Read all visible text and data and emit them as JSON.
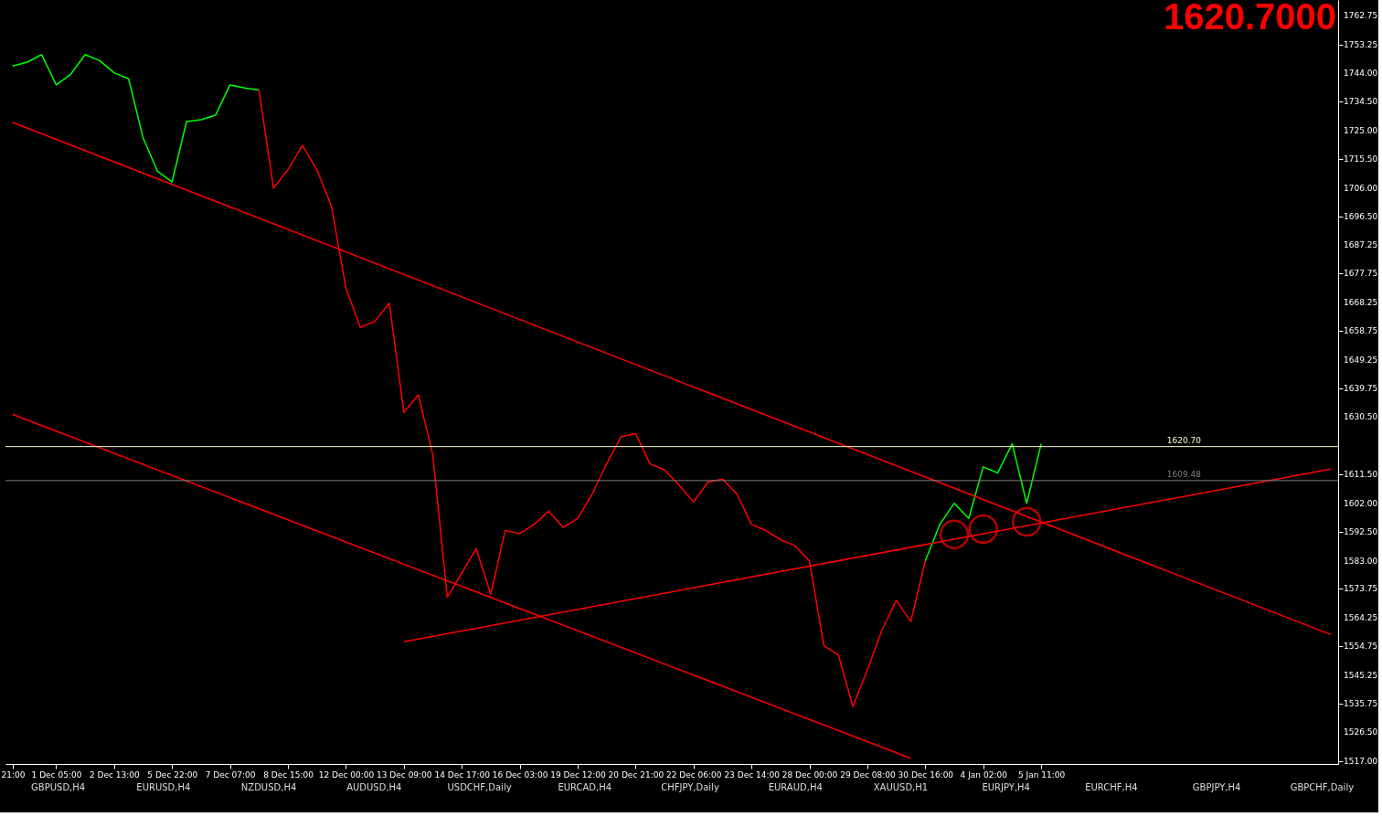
{
  "chart_data": {
    "type": "line",
    "annotations": [
      "1620.7000",
      "GBPUSD,H4",
      "EURUSD,H4",
      "NZDUSD,H4",
      "AUDUSD,H4",
      "USDCHF,Daily",
      "EURCAD,H4",
      "CHFJPY,Daily",
      "EURAUD,H4",
      "XAUUSD,H1",
      "EURJPY,H4",
      "EURCHF,H4",
      "GBPJPY,H4",
      "GBPCHF,Daily"
    ],
    "categories": [
      "21:00",
      null,
      null,
      "1 Dec 05:00",
      null,
      null,
      null,
      "2 Dec 13:00",
      null,
      null,
      null,
      "5 Dec 22:00",
      null,
      null,
      null,
      "7 Dec 07:00",
      null,
      null,
      null,
      "8 Dec 15:00",
      null,
      null,
      null,
      "12 Dec 00:00",
      null,
      null,
      null,
      "13 Dec 09:00",
      null,
      null,
      null,
      "14 Dec 17:00",
      null,
      null,
      null,
      "16 Dec 03:00",
      null,
      null,
      null,
      "19 Dec 12:00",
      null,
      null,
      null,
      "20 Dec 21:00",
      null,
      null,
      null,
      "22 Dec 06:00",
      null,
      null,
      null,
      "23 Dec 14:00",
      null,
      null,
      null,
      "28 Dec 00:00",
      null,
      null,
      null,
      "29 Dec 08:00",
      null,
      null,
      null,
      "30 Dec 16:00",
      null,
      null,
      null,
      "4 Jan 02:00",
      null,
      null,
      null,
      "5 Jan 11:00",
      null,
      null,
      null,
      null,
      null,
      null,
      null,
      null,
      null,
      null,
      null,
      null,
      null,
      null,
      null,
      null,
      null,
      null,
      null,
      null
    ],
    "ylim": [
      1516,
      1768
    ],
    "yticks": [
      {
        "value": 1517,
        "label": "1517.00"
      },
      {
        "value": 1526.5,
        "label": "1526.50"
      },
      1535.75,
      1545.25,
      1554.75,
      1564.25,
      1573.75,
      {
        "value": 1583,
        "label": "1583.00"
      },
      {
        "value": 1592.5,
        "label": "1592.50"
      },
      {
        "value": 1602,
        "label": "1602.00"
      },
      {
        "value": 1611.5,
        "label": "1611.50"
      },
      {
        "value": 1630.5,
        "label": "1630.50"
      },
      1639.75,
      1649.25,
      1658.75,
      1668.25,
      1677.75,
      1687.25,
      {
        "value": 1696.5,
        "label": "1696.50"
      },
      {
        "value": 1706,
        "label": "1706.00"
      },
      {
        "value": 1715.5,
        "label": "1715.50"
      },
      {
        "value": 1725,
        "label": "1725.00"
      },
      {
        "value": 1734.5,
        "label": "1734.50"
      },
      {
        "value": 1744,
        "label": "1744.00"
      },
      1753.25,
      1762.75
    ],
    "grid": false,
    "marker": "none",
    "line_style": "solid",
    "ref_lines": [
      {
        "axis": "y",
        "value": 1620.7,
        "label": "1620.70",
        "color": "#ffffcc"
      },
      {
        "axis": "y",
        "value": 1609.48,
        "label": "1609.48",
        "color": "#808080"
      }
    ],
    "series": [
      {
        "color": "#00ff00",
        "values": [
          1746.2,
          1747.5,
          1750.0,
          1740,
          1743.5,
          1750,
          1748,
          1744,
          1742,
          1722.5,
          1711.5,
          1708,
          1727.9,
          1728.5,
          1730,
          1740,
          1739,
          1738.3,
          null,
          null,
          null,
          null,
          null,
          null,
          null,
          null,
          null,
          null,
          null,
          null,
          null,
          null,
          null,
          null,
          null,
          null,
          null,
          null,
          null,
          null,
          null,
          null,
          null,
          null,
          null,
          null,
          null,
          null,
          null,
          null,
          null,
          null,
          null,
          null,
          null,
          null,
          null,
          null,
          null,
          null,
          null,
          null,
          null,
          null,
          null,
          null,
          null,
          null,
          null,
          null,
          null,
          null,
          null,
          null,
          null,
          null,
          null,
          null,
          null,
          null,
          null,
          null,
          null,
          null,
          null,
          null,
          null,
          null,
          null,
          null,
          null,
          null
        ]
      },
      {
        "color": "#ff0000",
        "values": [
          null,
          null,
          null,
          null,
          null,
          null,
          null,
          null,
          null,
          null,
          null,
          null,
          null,
          null,
          null,
          null,
          null,
          1738.3,
          1706,
          1712,
          1720,
          1712,
          1700,
          1673,
          1660,
          1662,
          1668,
          1632,
          1637.8,
          1618,
          1571,
          1579,
          1587,
          1572,
          1593,
          1592,
          1595,
          1599.4,
          1594,
          1597,
          1605,
          1615,
          1624,
          1625,
          1615,
          1613,
          1608,
          1602.4,
          1609,
          1610,
          1605,
          1595,
          1593,
          1590,
          1588,
          1583,
          1555,
          1552,
          1535,
          1547,
          1560,
          1570,
          1563,
          1583,
          null,
          null,
          null,
          null,
          null,
          null,
          null,
          null,
          null,
          null,
          null,
          null,
          null,
          null,
          null,
          null,
          null,
          null,
          null,
          null,
          null,
          null,
          null,
          null,
          null,
          null,
          null,
          null
        ]
      },
      {
        "color": "#00ff00",
        "values": [
          null,
          null,
          null,
          null,
          null,
          null,
          null,
          null,
          null,
          null,
          null,
          null,
          null,
          null,
          null,
          null,
          null,
          null,
          null,
          null,
          null,
          null,
          null,
          null,
          null,
          null,
          null,
          null,
          null,
          null,
          null,
          null,
          null,
          null,
          null,
          null,
          null,
          null,
          null,
          null,
          null,
          null,
          null,
          null,
          null,
          null,
          null,
          null,
          null,
          null,
          null,
          null,
          null,
          null,
          null,
          null,
          null,
          null,
          null,
          null,
          null,
          null,
          null,
          1583,
          1595,
          1602,
          1597,
          1614,
          1612,
          1621.6,
          1602,
          1621.6,
          null,
          null,
          null,
          null,
          null,
          null,
          null,
          null,
          null,
          null,
          null,
          null,
          null,
          null,
          null,
          null,
          null,
          null,
          null,
          null
        ]
      },
      {
        "type": "line",
        "color": "#ff0000",
        "values": [
          1727.6,
          null,
          null,
          null,
          null,
          null,
          null,
          null,
          null,
          null,
          null,
          null,
          null,
          null,
          null,
          null,
          null,
          null,
          null,
          null,
          null,
          null,
          null,
          null,
          null,
          null,
          null,
          null,
          null,
          null,
          null,
          null,
          null,
          null,
          null,
          null,
          null,
          null,
          null,
          null,
          null,
          null,
          null,
          null,
          null,
          null,
          null,
          null,
          null,
          null,
          null,
          null,
          null,
          null,
          null,
          null,
          null,
          null,
          null,
          null,
          null,
          null,
          null,
          null,
          null,
          null,
          null,
          null,
          null,
          null,
          null,
          null,
          null,
          null,
          null,
          null,
          null,
          null,
          null,
          null,
          null,
          null,
          null,
          null,
          null,
          null,
          null,
          null,
          null,
          null,
          null,
          1558.7
        ]
      },
      {
        "type": "line",
        "color": "#ff0000",
        "values": [
          1631.3,
          null,
          null,
          null,
          null,
          null,
          null,
          null,
          null,
          null,
          null,
          null,
          null,
          null,
          null,
          null,
          null,
          null,
          null,
          null,
          null,
          null,
          null,
          null,
          null,
          null,
          null,
          null,
          null,
          null,
          null,
          null,
          null,
          null,
          null,
          null,
          null,
          null,
          null,
          null,
          null,
          null,
          null,
          null,
          null,
          null,
          null,
          null,
          null,
          null,
          null,
          null,
          null,
          null,
          null,
          null,
          null,
          null,
          null,
          null,
          null,
          null,
          1517.9,
          null,
          null,
          null,
          null,
          null,
          null,
          null,
          null,
          null,
          null,
          null,
          null,
          null,
          null,
          null,
          null,
          null,
          null,
          null,
          null,
          null,
          null,
          null,
          null,
          null,
          null,
          null,
          null,
          null
        ]
      },
      {
        "type": "line",
        "color": "#ff0000",
        "values": [
          null,
          null,
          null,
          null,
          null,
          null,
          null,
          null,
          null,
          null,
          null,
          null,
          null,
          null,
          null,
          null,
          null,
          null,
          null,
          null,
          null,
          null,
          null,
          null,
          null,
          null,
          null,
          1556.3,
          null,
          null,
          null,
          null,
          null,
          null,
          null,
          null,
          null,
          null,
          null,
          null,
          null,
          null,
          null,
          null,
          null,
          null,
          null,
          null,
          null,
          null,
          null,
          null,
          null,
          null,
          null,
          null,
          null,
          null,
          null,
          null,
          null,
          null,
          null,
          null,
          null,
          null,
          null,
          null,
          null,
          null,
          null,
          null,
          null,
          null,
          null,
          null,
          null,
          null,
          null,
          null,
          null,
          null,
          null,
          null,
          null,
          null,
          null,
          null,
          null,
          null,
          null,
          1613.3
        ]
      },
      {
        "type": "scatter",
        "color": "#ff0000",
        "marker": "circle",
        "values": [
          null,
          null,
          null,
          null,
          null,
          null,
          null,
          null,
          null,
          null,
          null,
          null,
          null,
          null,
          null,
          null,
          null,
          null,
          null,
          null,
          null,
          null,
          null,
          null,
          null,
          null,
          null,
          null,
          null,
          null,
          null,
          null,
          null,
          null,
          null,
          null,
          null,
          null,
          null,
          null,
          null,
          null,
          null,
          null,
          null,
          null,
          null,
          null,
          null,
          null,
          null,
          null,
          null,
          null,
          null,
          null,
          null,
          null,
          null,
          null,
          null,
          null,
          null,
          null,
          null,
          1591.7,
          null,
          1593.5,
          null,
          null,
          1595.9,
          null,
          null,
          null,
          null,
          null,
          null,
          null,
          null,
          null,
          null,
          null,
          null,
          null,
          null,
          null,
          null,
          null,
          null,
          null,
          null,
          null
        ]
      }
    ]
  }
}
